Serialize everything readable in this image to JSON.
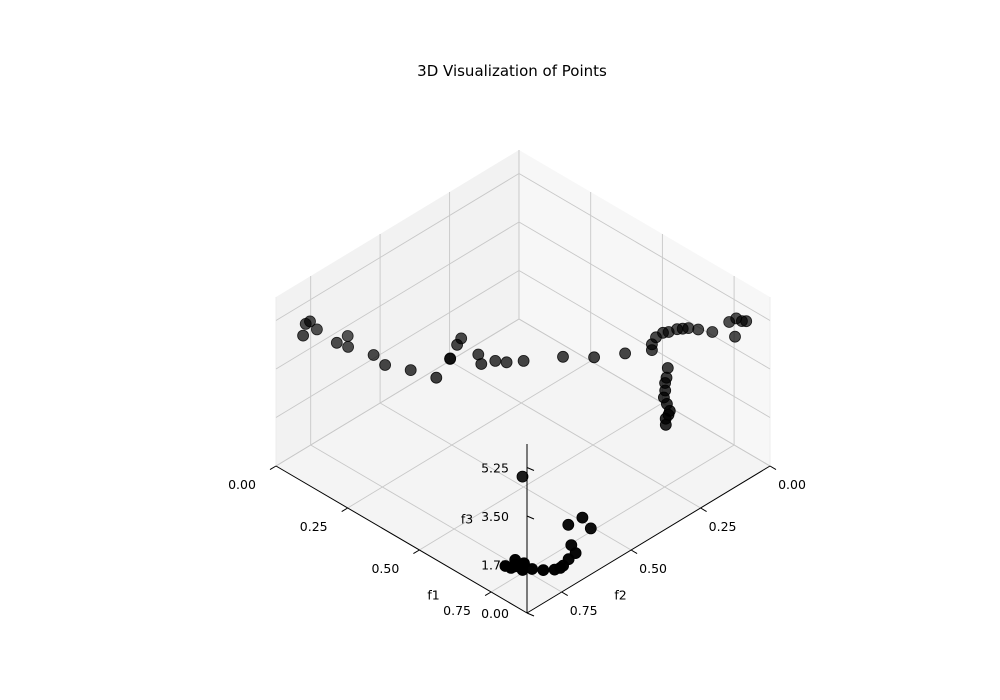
{
  "chart_data": {
    "type": "scatter",
    "title": "3D Visualization of Points",
    "xlabel": "f1",
    "ylabel": "f2",
    "zlabel": "f3",
    "xlim": [
      0,
      0.875
    ],
    "ylim": [
      0,
      0.875
    ],
    "zlim": [
      0,
      6.1
    ],
    "x_ticks": [
      {
        "value": 0,
        "label": "0.00"
      },
      {
        "value": 0.25,
        "label": "0.25"
      },
      {
        "value": 0.5,
        "label": "0.50"
      },
      {
        "value": 0.75,
        "label": "0.75"
      }
    ],
    "y_ticks": [
      {
        "value": 0,
        "label": "0.00"
      },
      {
        "value": 0.25,
        "label": "0.25"
      },
      {
        "value": 0.5,
        "label": "0.50"
      },
      {
        "value": 0.75,
        "label": "0.75"
      }
    ],
    "z_ticks": [
      {
        "value": 0,
        "label": "0.00"
      },
      {
        "value": 1.75,
        "label": "1.75"
      },
      {
        "value": 3.5,
        "label": "3.50"
      },
      {
        "value": 5.25,
        "label": "5.25"
      }
    ],
    "grid": true,
    "marker_color": "#000000",
    "pane_colors": {
      "left": "#f2f2f2",
      "right": "#f7f7f7",
      "floor": "#f4f4f4"
    },
    "series": [
      {
        "values": [
          [
            0.855,
            0.065,
            5.5
          ],
          [
            0.835,
            0.06,
            5.35
          ],
          [
            0.825,
            0.07,
            5.45
          ],
          [
            0.815,
            0.085,
            5.35
          ],
          [
            0.84,
            0.09,
            5.0
          ],
          [
            0.79,
            0.12,
            5.05
          ],
          [
            0.77,
            0.15,
            5.2
          ],
          [
            0.755,
            0.17,
            5.28
          ],
          [
            0.745,
            0.18,
            5.26
          ],
          [
            0.735,
            0.19,
            5.24
          ],
          [
            0.725,
            0.21,
            5.2
          ],
          [
            0.715,
            0.22,
            5.17
          ],
          [
            0.71,
            0.24,
            5.1
          ],
          [
            0.715,
            0.26,
            5.0
          ],
          [
            0.72,
            0.265,
            4.85
          ],
          [
            0.78,
            0.27,
            4.6
          ],
          [
            0.79,
            0.285,
            4.4
          ],
          [
            0.795,
            0.295,
            4.3
          ],
          [
            0.805,
            0.305,
            4.15
          ],
          [
            0.815,
            0.32,
            4.05
          ],
          [
            0.835,
            0.33,
            4.0
          ],
          [
            0.855,
            0.34,
            3.93
          ],
          [
            0.86,
            0.35,
            3.88
          ],
          [
            0.86,
            0.36,
            3.8
          ],
          [
            0.87,
            0.37,
            3.7
          ],
          [
            0.075,
            0.83,
            5.4
          ],
          [
            0.06,
            0.83,
            5.22
          ],
          [
            0.08,
            0.86,
            5.1
          ],
          [
            0.07,
            0.8,
            4.9
          ],
          [
            0.12,
            0.78,
            4.6
          ],
          [
            0.14,
            0.76,
            4.45
          ],
          [
            0.1,
            0.72,
            4.36
          ],
          [
            0.2,
            0.73,
            4.34
          ],
          [
            0.24,
            0.73,
            4.22
          ],
          [
            0.3,
            0.7,
            4.22
          ],
          [
            0.37,
            0.68,
            4.25
          ],
          [
            0.36,
            0.62,
            4.5
          ],
          [
            0.37,
            0.63,
            4.64
          ],
          [
            0.365,
            0.6,
            4.92
          ],
          [
            0.36,
            0.58,
            5.0
          ],
          [
            0.43,
            0.58,
            4.5
          ],
          [
            0.41,
            0.57,
            4.66
          ],
          [
            0.45,
            0.55,
            4.55
          ],
          [
            0.47,
            0.53,
            4.5
          ],
          [
            0.5,
            0.5,
            4.55
          ],
          [
            0.56,
            0.42,
            4.58
          ],
          [
            0.62,
            0.37,
            4.62
          ],
          [
            0.67,
            0.31,
            4.7
          ],
          [
            0.85,
            0.86,
            1.55
          ],
          [
            0.845,
            0.86,
            1.28
          ],
          [
            0.8,
            0.84,
            1.25
          ],
          [
            0.79,
            0.865,
            1.12
          ],
          [
            0.8,
            0.855,
            1.05
          ],
          [
            0.8,
            0.84,
            1.02
          ],
          [
            0.79,
            0.83,
            0.95
          ],
          [
            0.8,
            0.82,
            0.86
          ],
          [
            0.82,
            0.8,
            0.8
          ],
          [
            0.84,
            0.78,
            0.76
          ],
          [
            0.86,
            0.76,
            0.78
          ],
          [
            0.87,
            0.75,
            0.84
          ],
          [
            0.87,
            0.74,
            0.86
          ],
          [
            0.87,
            0.72,
            0.97
          ],
          [
            0.875,
            0.7,
            1.1
          ],
          [
            0.86,
            0.7,
            1.3
          ],
          [
            0.87,
            0.64,
            1.6
          ],
          [
            0.86,
            0.66,
            2.05
          ],
          [
            0.84,
            0.69,
            1.85
          ],
          [
            0.69,
            0.7,
            2.74
          ]
        ]
      }
    ]
  }
}
